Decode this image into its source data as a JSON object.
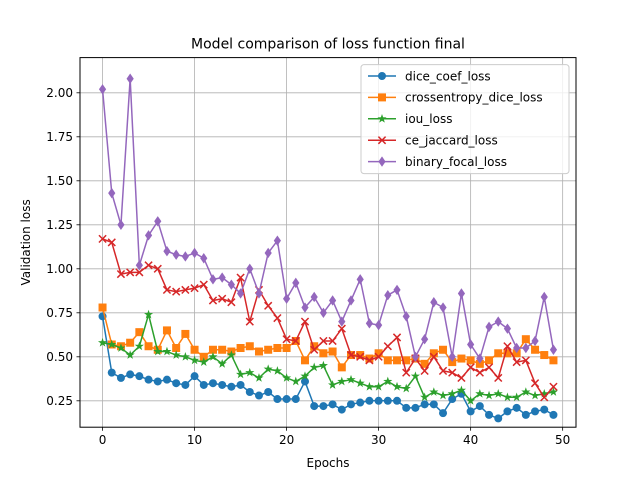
{
  "chart_data": {
    "type": "line",
    "title": "Model comparison of loss function final",
    "xlabel": "Epochs",
    "ylabel": "Validation loss",
    "xlim": [
      -2.45,
      51.45
    ],
    "ylim": [
      0.1,
      2.2
    ],
    "xticks": [
      0,
      10,
      20,
      30,
      40,
      50
    ],
    "yticks": [
      0.25,
      0.5,
      0.75,
      1.0,
      1.25,
      1.5,
      1.75,
      2.0
    ],
    "ytick_labels": [
      "0.25",
      "0.50",
      "0.75",
      "1.00",
      "1.25",
      "1.50",
      "1.75",
      "2.00"
    ],
    "grid": true,
    "legend_position": "top-right",
    "x": [
      0,
      1,
      2,
      3,
      4,
      5,
      6,
      7,
      8,
      9,
      10,
      11,
      12,
      13,
      14,
      15,
      16,
      17,
      18,
      19,
      20,
      21,
      22,
      23,
      24,
      25,
      26,
      27,
      28,
      29,
      30,
      31,
      32,
      33,
      34,
      35,
      36,
      37,
      38,
      39,
      40,
      41,
      42,
      43,
      44,
      45,
      46,
      47,
      48,
      49
    ],
    "series": [
      {
        "name": "dice_coef_loss",
        "color": "#1f77b4",
        "marker": "circle",
        "values": [
          0.73,
          0.41,
          0.38,
          0.4,
          0.39,
          0.37,
          0.36,
          0.37,
          0.35,
          0.34,
          0.39,
          0.34,
          0.35,
          0.34,
          0.33,
          0.34,
          0.3,
          0.28,
          0.3,
          0.26,
          0.26,
          0.26,
          0.36,
          0.22,
          0.22,
          0.23,
          0.2,
          0.23,
          0.24,
          0.25,
          0.25,
          0.25,
          0.25,
          0.21,
          0.21,
          0.23,
          0.23,
          0.18,
          0.26,
          0.29,
          0.19,
          0.22,
          0.17,
          0.15,
          0.19,
          0.21,
          0.17,
          0.19,
          0.2,
          0.17
        ]
      },
      {
        "name": "crossentropy_dice_loss",
        "color": "#ff7f0e",
        "marker": "square",
        "values": [
          0.78,
          0.57,
          0.56,
          0.58,
          0.64,
          0.56,
          0.54,
          0.65,
          0.55,
          0.63,
          0.54,
          0.5,
          0.54,
          0.54,
          0.53,
          0.55,
          0.56,
          0.53,
          0.54,
          0.55,
          0.55,
          0.59,
          0.48,
          0.56,
          0.52,
          0.53,
          0.44,
          0.51,
          0.51,
          0.49,
          0.52,
          0.48,
          0.48,
          0.48,
          0.49,
          0.46,
          0.52,
          0.54,
          0.47,
          0.49,
          0.48,
          0.46,
          0.48,
          0.52,
          0.52,
          0.52,
          0.6,
          0.54,
          0.51,
          0.48
        ]
      },
      {
        "name": "iou_loss",
        "color": "#2ca02c",
        "marker": "star",
        "values": [
          0.58,
          0.57,
          0.55,
          0.51,
          0.56,
          0.74,
          0.53,
          0.53,
          0.51,
          0.5,
          0.48,
          0.47,
          0.5,
          0.46,
          0.51,
          0.4,
          0.41,
          0.38,
          0.43,
          0.42,
          0.38,
          0.36,
          0.39,
          0.44,
          0.45,
          0.34,
          0.36,
          0.37,
          0.35,
          0.33,
          0.33,
          0.36,
          0.33,
          0.32,
          0.39,
          0.27,
          0.3,
          0.28,
          0.29,
          0.31,
          0.25,
          0.29,
          0.28,
          0.29,
          0.27,
          0.27,
          0.3,
          0.28,
          0.29,
          0.3
        ]
      },
      {
        "name": "ce_jaccard_loss",
        "color": "#d62728",
        "marker": "x",
        "values": [
          1.17,
          1.15,
          0.97,
          0.98,
          0.98,
          1.02,
          1.0,
          0.88,
          0.87,
          0.88,
          0.89,
          0.91,
          0.82,
          0.83,
          0.81,
          0.95,
          0.7,
          0.88,
          0.79,
          0.72,
          0.6,
          0.59,
          0.7,
          0.54,
          0.59,
          0.59,
          0.66,
          0.51,
          0.5,
          0.48,
          0.5,
          0.56,
          0.61,
          0.41,
          0.49,
          0.42,
          0.5,
          0.42,
          0.41,
          0.38,
          0.44,
          0.41,
          0.44,
          0.38,
          0.56,
          0.47,
          0.48,
          0.35,
          0.27,
          0.33
        ]
      },
      {
        "name": "binary_focal_loss",
        "color": "#9467bd",
        "marker": "diamond",
        "values": [
          2.02,
          1.43,
          1.25,
          2.08,
          1.02,
          1.19,
          1.27,
          1.1,
          1.08,
          1.07,
          1.09,
          1.06,
          0.94,
          0.95,
          0.91,
          0.86,
          1.0,
          0.86,
          1.09,
          1.16,
          0.83,
          0.92,
          0.78,
          0.84,
          0.75,
          0.82,
          0.7,
          0.82,
          0.94,
          0.69,
          0.68,
          0.85,
          0.88,
          0.73,
          0.5,
          0.6,
          0.81,
          0.78,
          0.5,
          0.86,
          0.57,
          0.49,
          0.67,
          0.7,
          0.66,
          0.55,
          0.55,
          0.59,
          0.84,
          0.54
        ]
      }
    ]
  }
}
